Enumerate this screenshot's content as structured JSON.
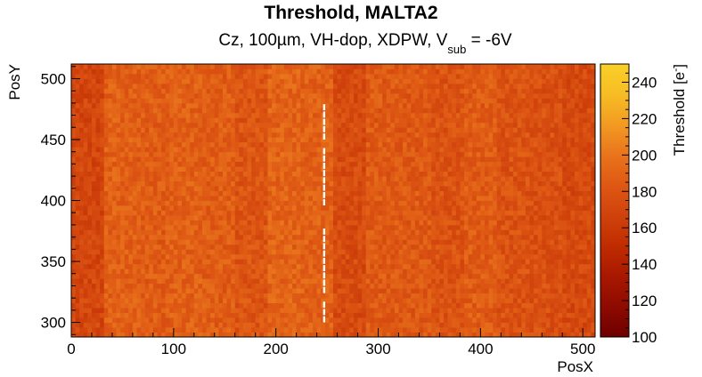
{
  "chart_data": {
    "type": "heatmap",
    "title": "Threshold, MALTA2",
    "subtitle": {
      "prefix": "Cz, 100µm, VH-dop, XDPW, V",
      "subscript": "sub",
      "suffix": " = -6V"
    },
    "xlabel": "PosX",
    "ylabel": "PosY",
    "colorbar_label": "Threshold [e",
    "colorbar_label_sup": "-",
    "colorbar_label_end": "]",
    "xlim": [
      0,
      512
    ],
    "ylim": [
      288,
      512
    ],
    "zlim": [
      100,
      250
    ],
    "x_ticks": [
      0,
      100,
      200,
      300,
      400,
      500
    ],
    "y_ticks": [
      300,
      350,
      400,
      450,
      500
    ],
    "z_ticks": [
      100,
      120,
      140,
      160,
      180,
      200,
      220,
      240
    ],
    "x_tick_labels": [
      "0",
      "100",
      "200",
      "300",
      "400",
      "500"
    ],
    "y_tick_labels": [
      "300",
      "350",
      "400",
      "450",
      "500"
    ],
    "z_tick_labels": [
      "100",
      "120",
      "140",
      "160",
      "180",
      "200",
      "220",
      "240"
    ],
    "column_bands": [
      {
        "x_start": 0,
        "x_end": 32,
        "mean_threshold": 170
      },
      {
        "x_start": 32,
        "x_end": 64,
        "mean_threshold": 188
      },
      {
        "x_start": 64,
        "x_end": 96,
        "mean_threshold": 186
      },
      {
        "x_start": 96,
        "x_end": 128,
        "mean_threshold": 188
      },
      {
        "x_start": 128,
        "x_end": 160,
        "mean_threshold": 186
      },
      {
        "x_start": 160,
        "x_end": 192,
        "mean_threshold": 180
      },
      {
        "x_start": 192,
        "x_end": 224,
        "mean_threshold": 190
      },
      {
        "x_start": 224,
        "x_end": 256,
        "mean_threshold": 188
      },
      {
        "x_start": 256,
        "x_end": 288,
        "mean_threshold": 174
      },
      {
        "x_start": 288,
        "x_end": 320,
        "mean_threshold": 184
      },
      {
        "x_start": 320,
        "x_end": 352,
        "mean_threshold": 183
      },
      {
        "x_start": 352,
        "x_end": 384,
        "mean_threshold": 179
      },
      {
        "x_start": 384,
        "x_end": 416,
        "mean_threshold": 185
      },
      {
        "x_start": 416,
        "x_end": 448,
        "mean_threshold": 179
      },
      {
        "x_start": 448,
        "x_end": 480,
        "mean_threshold": 177
      },
      {
        "x_start": 480,
        "x_end": 512,
        "mean_threshold": 173
      }
    ],
    "empty_column": {
      "x": 247,
      "y_start": 300,
      "y_end": 480
    },
    "colormap": [
      "#6e0000",
      "#8e0b00",
      "#a81800",
      "#c02c00",
      "#d0420c",
      "#de5814",
      "#e9741c",
      "#f29a22",
      "#f7bd24",
      "#f9d028"
    ]
  }
}
